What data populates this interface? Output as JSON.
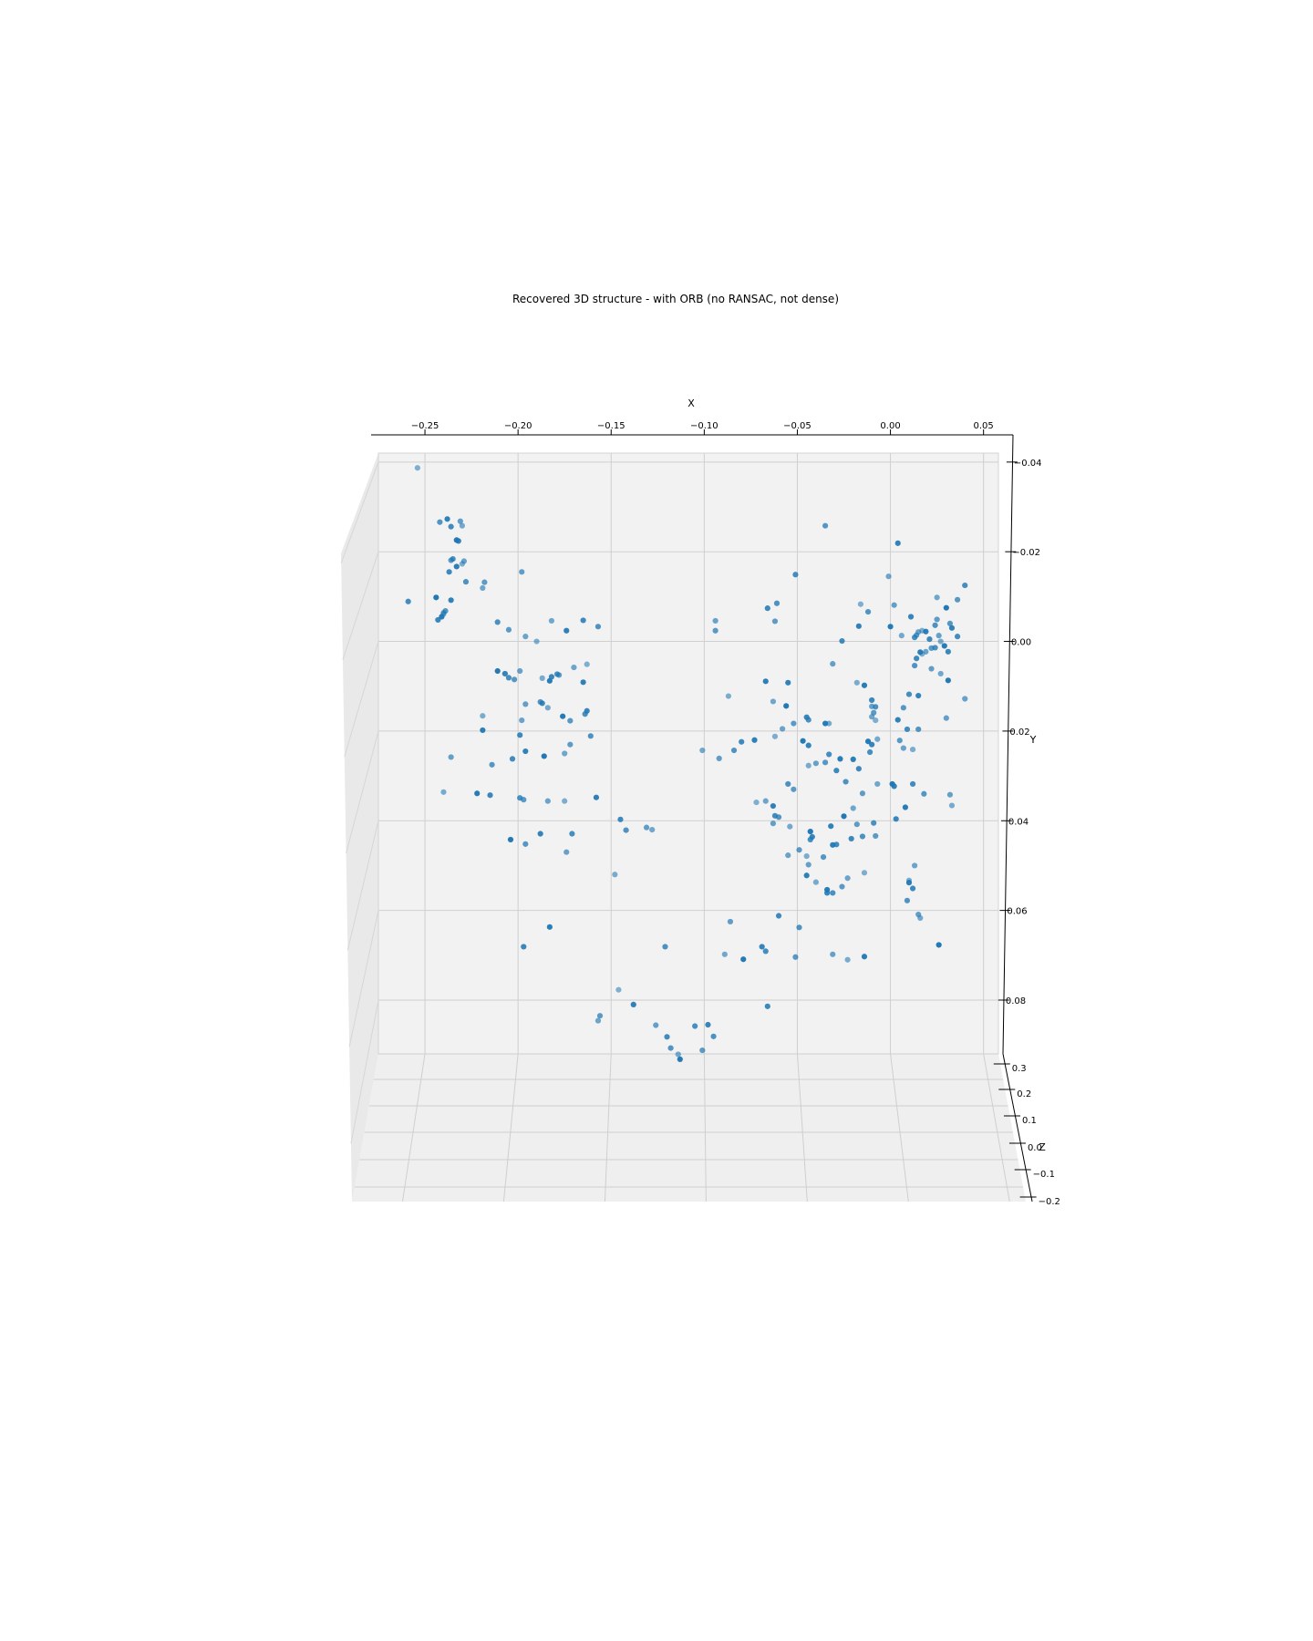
{
  "chart_data": {
    "type": "scatter",
    "title": "Recovered 3D structure - with ORB (no RANSAC, not dense)",
    "xlabel": "X",
    "ylabel": "Y",
    "zlabel": "Z",
    "xlim": [
      -0.275,
      0.058
    ],
    "ylim": [
      0.092,
      -0.042
    ],
    "zlim": [
      -0.2,
      0.35
    ],
    "x_ticks": [
      "−0.25",
      "−0.20",
      "−0.15",
      "−0.10",
      "−0.05",
      "0.00",
      "0.05"
    ],
    "y_ticks": [
      "−0.04",
      "−0.02",
      "0.00",
      "0.02",
      "0.04",
      "0.06",
      "0.08"
    ],
    "z_ticks": [
      "0.3",
      "0.2",
      "0.1",
      "0.0",
      "−0.1",
      "−0.2"
    ],
    "grid": true,
    "marker_color": "#1f77b4",
    "pane_color": "#f2f2f2",
    "points": [
      {
        "x": -0.254,
        "y": -0.0387
      },
      {
        "x": -0.238,
        "y": -0.0273
      },
      {
        "x": -0.236,
        "y": -0.0256
      },
      {
        "x": -0.242,
        "y": -0.0266
      },
      {
        "x": -0.231,
        "y": -0.0268
      },
      {
        "x": -0.23,
        "y": -0.0258
      },
      {
        "x": -0.233,
        "y": -0.0226
      },
      {
        "x": -0.232,
        "y": -0.0224
      },
      {
        "x": -0.235,
        "y": -0.0184
      },
      {
        "x": -0.236,
        "y": -0.0181
      },
      {
        "x": -0.229,
        "y": -0.0179
      },
      {
        "x": -0.23,
        "y": -0.0173
      },
      {
        "x": -0.233,
        "y": -0.0167
      },
      {
        "x": -0.237,
        "y": -0.0155
      },
      {
        "x": -0.228,
        "y": -0.0133
      },
      {
        "x": -0.218,
        "y": -0.0132
      },
      {
        "x": -0.219,
        "y": -0.0119
      },
      {
        "x": -0.244,
        "y": -0.0098
      },
      {
        "x": -0.236,
        "y": -0.0092
      },
      {
        "x": -0.259,
        "y": -0.0089
      },
      {
        "x": -0.239,
        "y": -0.0068
      },
      {
        "x": -0.24,
        "y": -0.0064
      },
      {
        "x": -0.24,
        "y": -0.0061
      },
      {
        "x": -0.241,
        "y": -0.0055
      },
      {
        "x": -0.243,
        "y": -0.0048
      },
      {
        "x": -0.211,
        "y": -0.0043
      },
      {
        "x": -0.205,
        "y": -0.0026
      },
      {
        "x": -0.196,
        "y": -0.0011
      },
      {
        "x": -0.19,
        "y": 0.0
      },
      {
        "x": -0.174,
        "y": -0.0024
      },
      {
        "x": -0.165,
        "y": -0.0047
      },
      {
        "x": -0.157,
        "y": -0.0033
      },
      {
        "x": -0.198,
        "y": -0.0155
      },
      {
        "x": -0.182,
        "y": -0.0046
      },
      {
        "x": -0.211,
        "y": 0.0066
      },
      {
        "x": -0.207,
        "y": 0.0072
      },
      {
        "x": -0.205,
        "y": 0.0081
      },
      {
        "x": -0.202,
        "y": 0.0085
      },
      {
        "x": -0.199,
        "y": 0.0066
      },
      {
        "x": -0.187,
        "y": 0.0082
      },
      {
        "x": -0.183,
        "y": 0.0088
      },
      {
        "x": -0.182,
        "y": 0.0079
      },
      {
        "x": -0.179,
        "y": 0.0073
      },
      {
        "x": -0.178,
        "y": 0.0075
      },
      {
        "x": -0.17,
        "y": 0.0058
      },
      {
        "x": -0.163,
        "y": 0.0051
      },
      {
        "x": -0.165,
        "y": 0.0091
      },
      {
        "x": -0.187,
        "y": 0.0138
      },
      {
        "x": -0.188,
        "y": 0.0135
      },
      {
        "x": -0.196,
        "y": 0.014
      },
      {
        "x": -0.184,
        "y": 0.0148
      },
      {
        "x": -0.176,
        "y": 0.0167
      },
      {
        "x": -0.163,
        "y": 0.0155
      },
      {
        "x": -0.164,
        "y": 0.0162
      },
      {
        "x": -0.172,
        "y": 0.0177
      },
      {
        "x": -0.198,
        "y": 0.0176
      },
      {
        "x": -0.219,
        "y": 0.0166
      },
      {
        "x": -0.219,
        "y": 0.0198
      },
      {
        "x": -0.199,
        "y": 0.0209
      },
      {
        "x": -0.161,
        "y": 0.0211
      },
      {
        "x": -0.172,
        "y": 0.023
      },
      {
        "x": -0.175,
        "y": 0.025
      },
      {
        "x": -0.186,
        "y": 0.0256
      },
      {
        "x": -0.196,
        "y": 0.0245
      },
      {
        "x": -0.203,
        "y": 0.0262
      },
      {
        "x": -0.214,
        "y": 0.0275
      },
      {
        "x": -0.236,
        "y": 0.0258
      },
      {
        "x": -0.24,
        "y": 0.0336
      },
      {
        "x": -0.222,
        "y": 0.0339
      },
      {
        "x": -0.215,
        "y": 0.0343
      },
      {
        "x": -0.199,
        "y": 0.0349
      },
      {
        "x": -0.197,
        "y": 0.0353
      },
      {
        "x": -0.184,
        "y": 0.0356
      },
      {
        "x": -0.175,
        "y": 0.0356
      },
      {
        "x": -0.158,
        "y": 0.0348
      },
      {
        "x": -0.145,
        "y": 0.0397
      },
      {
        "x": -0.142,
        "y": 0.0421
      },
      {
        "x": -0.131,
        "y": 0.0415
      },
      {
        "x": -0.128,
        "y": 0.042
      },
      {
        "x": -0.204,
        "y": 0.0442
      },
      {
        "x": -0.188,
        "y": 0.0429
      },
      {
        "x": -0.171,
        "y": 0.0429
      },
      {
        "x": -0.196,
        "y": 0.0452
      },
      {
        "x": -0.174,
        "y": 0.047
      },
      {
        "x": -0.148,
        "y": 0.052
      },
      {
        "x": -0.183,
        "y": 0.0637
      },
      {
        "x": -0.197,
        "y": 0.0681
      },
      {
        "x": -0.121,
        "y": 0.0681
      },
      {
        "x": -0.156,
        "y": 0.0835
      },
      {
        "x": -0.157,
        "y": 0.0846
      },
      {
        "x": -0.146,
        "y": 0.0777
      },
      {
        "x": -0.138,
        "y": 0.081
      },
      {
        "x": -0.12,
        "y": 0.0882
      },
      {
        "x": -0.118,
        "y": 0.0907
      },
      {
        "x": -0.126,
        "y": 0.0856
      },
      {
        "x": -0.114,
        "y": 0.0921
      },
      {
        "x": -0.113,
        "y": 0.0932
      },
      {
        "x": -0.098,
        "y": 0.0855
      },
      {
        "x": -0.105,
        "y": 0.0858
      },
      {
        "x": -0.094,
        "y": -0.0024
      },
      {
        "x": -0.094,
        "y": -0.0046
      },
      {
        "x": -0.087,
        "y": 0.0122
      },
      {
        "x": -0.067,
        "y": 0.0089
      },
      {
        "x": -0.066,
        "y": -0.0074
      },
      {
        "x": -0.061,
        "y": -0.0085
      },
      {
        "x": -0.062,
        "y": -0.0045
      },
      {
        "x": -0.063,
        "y": 0.0134
      },
      {
        "x": -0.056,
        "y": 0.0144
      },
      {
        "x": -0.055,
        "y": 0.0092
      },
      {
        "x": -0.051,
        "y": -0.0149
      },
      {
        "x": -0.035,
        "y": -0.0258
      },
      {
        "x": -0.031,
        "y": 0.005
      },
      {
        "x": -0.033,
        "y": 0.0183
      },
      {
        "x": -0.035,
        "y": 0.0183
      },
      {
        "x": -0.045,
        "y": 0.0169
      },
      {
        "x": -0.044,
        "y": 0.0175
      },
      {
        "x": -0.052,
        "y": 0.0183
      },
      {
        "x": -0.058,
        "y": 0.0195
      },
      {
        "x": -0.062,
        "y": 0.0212
      },
      {
        "x": -0.073,
        "y": 0.022
      },
      {
        "x": -0.08,
        "y": 0.0224
      },
      {
        "x": -0.084,
        "y": 0.0243
      },
      {
        "x": -0.092,
        "y": 0.0261
      },
      {
        "x": -0.101,
        "y": 0.0243
      },
      {
        "x": -0.047,
        "y": 0.0222
      },
      {
        "x": -0.044,
        "y": 0.0232
      },
      {
        "x": -0.033,
        "y": 0.0252
      },
      {
        "x": -0.035,
        "y": 0.027
      },
      {
        "x": -0.04,
        "y": 0.0272
      },
      {
        "x": -0.044,
        "y": 0.0277
      },
      {
        "x": -0.027,
        "y": 0.0262
      },
      {
        "x": -0.029,
        "y": 0.0288
      },
      {
        "x": -0.055,
        "y": 0.0318
      },
      {
        "x": -0.052,
        "y": 0.033
      },
      {
        "x": -0.067,
        "y": 0.0356
      },
      {
        "x": -0.072,
        "y": 0.0359
      },
      {
        "x": -0.063,
        "y": 0.0367
      },
      {
        "x": -0.062,
        "y": 0.0389
      },
      {
        "x": -0.06,
        "y": 0.0392
      },
      {
        "x": -0.063,
        "y": 0.0406
      },
      {
        "x": -0.054,
        "y": 0.0413
      },
      {
        "x": -0.043,
        "y": 0.0424
      },
      {
        "x": -0.042,
        "y": 0.0436
      },
      {
        "x": -0.043,
        "y": 0.0442
      },
      {
        "x": -0.049,
        "y": 0.0465
      },
      {
        "x": -0.055,
        "y": 0.0477
      },
      {
        "x": -0.045,
        "y": 0.0479
      },
      {
        "x": -0.031,
        "y": 0.0454
      },
      {
        "x": -0.021,
        "y": 0.044
      },
      {
        "x": -0.015,
        "y": 0.0435
      },
      {
        "x": -0.018,
        "y": 0.0408
      },
      {
        "x": -0.02,
        "y": 0.0372
      },
      {
        "x": -0.025,
        "y": 0.039
      },
      {
        "x": -0.032,
        "y": 0.0412
      },
      {
        "x": -0.029,
        "y": 0.0453
      },
      {
        "x": -0.036,
        "y": 0.0481
      },
      {
        "x": -0.044,
        "y": 0.0498
      },
      {
        "x": -0.04,
        "y": 0.0537
      },
      {
        "x": -0.034,
        "y": 0.0554
      },
      {
        "x": -0.034,
        "y": 0.0561
      },
      {
        "x": -0.031,
        "y": 0.0561
      },
      {
        "x": -0.026,
        "y": 0.0547
      },
      {
        "x": -0.023,
        "y": 0.0528
      },
      {
        "x": -0.014,
        "y": 0.0516
      },
      {
        "x": -0.045,
        "y": 0.0522
      },
      {
        "x": -0.06,
        "y": 0.0612
      },
      {
        "x": -0.049,
        "y": 0.0638
      },
      {
        "x": -0.086,
        "y": 0.0625
      },
      {
        "x": -0.089,
        "y": 0.0698
      },
      {
        "x": -0.079,
        "y": 0.0709
      },
      {
        "x": -0.069,
        "y": 0.0681
      },
      {
        "x": -0.067,
        "y": 0.0691
      },
      {
        "x": -0.051,
        "y": 0.0704
      },
      {
        "x": -0.031,
        "y": 0.0698
      },
      {
        "x": -0.023,
        "y": 0.071
      },
      {
        "x": -0.014,
        "y": 0.0703
      },
      {
        "x": -0.066,
        "y": 0.0814
      },
      {
        "x": -0.095,
        "y": 0.0881
      },
      {
        "x": -0.101,
        "y": 0.0912
      },
      {
        "x": -0.001,
        "y": -0.0145
      },
      {
        "x": -0.016,
        "y": -0.0083
      },
      {
        "x": -0.017,
        "y": -0.0034
      },
      {
        "x": -0.026,
        "y": -0.0001
      },
      {
        "x": -0.012,
        "y": -0.0066
      },
      {
        "x": 0.002,
        "y": -0.0081
      },
      {
        "x": 0.006,
        "y": -0.0013
      },
      {
        "x": 0.0,
        "y": -0.0033
      },
      {
        "x": 0.011,
        "y": -0.0055
      },
      {
        "x": 0.013,
        "y": -0.0009
      },
      {
        "x": 0.014,
        "y": -0.0014
      },
      {
        "x": 0.015,
        "y": -0.0021
      },
      {
        "x": 0.017,
        "y": -0.0024
      },
      {
        "x": 0.019,
        "y": -0.0022
      },
      {
        "x": 0.021,
        "y": -0.0005
      },
      {
        "x": 0.024,
        "y": -0.0036
      },
      {
        "x": 0.025,
        "y": -0.0049
      },
      {
        "x": 0.025,
        "y": -0.0098
      },
      {
        "x": 0.03,
        "y": -0.0075
      },
      {
        "x": 0.033,
        "y": -0.003
      },
      {
        "x": 0.036,
        "y": -0.0011
      },
      {
        "x": 0.032,
        "y": -0.004
      },
      {
        "x": 0.026,
        "y": -0.0013
      },
      {
        "x": 0.027,
        "y": 0.0
      },
      {
        "x": 0.029,
        "y": 0.001
      },
      {
        "x": 0.031,
        "y": 0.0023
      },
      {
        "x": 0.024,
        "y": 0.0014
      },
      {
        "x": 0.022,
        "y": 0.0015
      },
      {
        "x": 0.019,
        "y": 0.0023
      },
      {
        "x": 0.017,
        "y": 0.0028
      },
      {
        "x": 0.016,
        "y": 0.0024
      },
      {
        "x": 0.014,
        "y": 0.0038
      },
      {
        "x": 0.013,
        "y": 0.0054
      },
      {
        "x": 0.022,
        "y": 0.0061
      },
      {
        "x": 0.027,
        "y": 0.0072
      },
      {
        "x": 0.031,
        "y": 0.0087
      },
      {
        "x": 0.015,
        "y": 0.0121
      },
      {
        "x": 0.01,
        "y": 0.0118
      },
      {
        "x": 0.007,
        "y": 0.0148
      },
      {
        "x": -0.01,
        "y": 0.0145
      },
      {
        "x": -0.018,
        "y": 0.0092
      },
      {
        "x": -0.014,
        "y": 0.0098
      },
      {
        "x": -0.01,
        "y": 0.0131
      },
      {
        "x": -0.008,
        "y": 0.0146
      },
      {
        "x": -0.009,
        "y": 0.0159
      },
      {
        "x": -0.01,
        "y": 0.0168
      },
      {
        "x": -0.008,
        "y": 0.0176
      },
      {
        "x": 0.004,
        "y": 0.0175
      },
      {
        "x": 0.009,
        "y": 0.0196
      },
      {
        "x": 0.015,
        "y": 0.0196
      },
      {
        "x": 0.03,
        "y": 0.0171
      },
      {
        "x": -0.007,
        "y": 0.0218
      },
      {
        "x": -0.012,
        "y": 0.0223
      },
      {
        "x": -0.01,
        "y": 0.023
      },
      {
        "x": -0.011,
        "y": 0.0247
      },
      {
        "x": 0.005,
        "y": 0.0221
      },
      {
        "x": 0.007,
        "y": 0.0238
      },
      {
        "x": 0.012,
        "y": 0.0241
      },
      {
        "x": -0.02,
        "y": 0.0263
      },
      {
        "x": -0.017,
        "y": 0.0284
      },
      {
        "x": -0.024,
        "y": 0.0313
      },
      {
        "x": -0.015,
        "y": 0.0339
      },
      {
        "x": -0.007,
        "y": 0.0318
      },
      {
        "x": 0.001,
        "y": 0.0318
      },
      {
        "x": 0.002,
        "y": 0.0323
      },
      {
        "x": 0.012,
        "y": 0.0318
      },
      {
        "x": 0.018,
        "y": 0.034
      },
      {
        "x": 0.032,
        "y": 0.0342
      },
      {
        "x": 0.033,
        "y": 0.0366
      },
      {
        "x": 0.008,
        "y": 0.037
      },
      {
        "x": 0.003,
        "y": 0.0396
      },
      {
        "x": -0.009,
        "y": 0.0405
      },
      {
        "x": -0.008,
        "y": 0.0434
      },
      {
        "x": 0.013,
        "y": 0.05
      },
      {
        "x": 0.01,
        "y": 0.0533
      },
      {
        "x": 0.01,
        "y": 0.0538
      },
      {
        "x": 0.012,
        "y": 0.0551
      },
      {
        "x": 0.009,
        "y": 0.0578
      },
      {
        "x": 0.015,
        "y": 0.0609
      },
      {
        "x": 0.016,
        "y": 0.0617
      },
      {
        "x": 0.026,
        "y": 0.0677
      },
      {
        "x": 0.004,
        "y": -0.0219
      },
      {
        "x": 0.04,
        "y": -0.0125
      },
      {
        "x": 0.036,
        "y": -0.0093
      },
      {
        "x": 0.04,
        "y": 0.0128
      }
    ]
  }
}
